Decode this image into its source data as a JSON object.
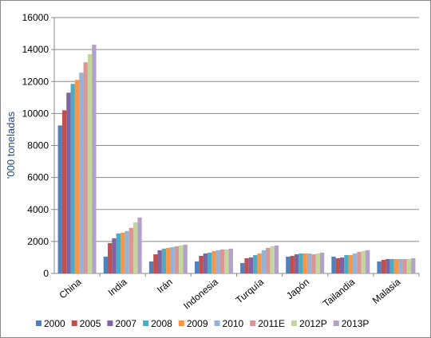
{
  "chart_data": {
    "type": "bar",
    "y_label": "'000 toneladas",
    "categories": [
      "China",
      "India",
      "Irán",
      "Indonesia",
      "Turquía",
      "Japón",
      "Tailandia",
      "Malasia"
    ],
    "series": [
      {
        "name": "2000",
        "color": "#4F81BD",
        "values": [
          9250,
          1050,
          750,
          750,
          650,
          1050,
          1050,
          750
        ]
      },
      {
        "name": "2005",
        "color": "#C0504D",
        "values": [
          10200,
          1900,
          1200,
          1100,
          950,
          1100,
          950,
          850
        ]
      },
      {
        "name": "2007",
        "color": "#8064A2",
        "values": [
          11300,
          2200,
          1450,
          1250,
          1000,
          1200,
          1000,
          900
        ]
      },
      {
        "name": "2008",
        "color": "#4BACC6",
        "values": [
          11850,
          2500,
          1550,
          1300,
          1150,
          1250,
          1150,
          900
        ]
      },
      {
        "name": "2009",
        "color": "#F79646",
        "values": [
          12100,
          2550,
          1600,
          1400,
          1250,
          1250,
          1150,
          900
        ]
      },
      {
        "name": "2010",
        "color": "#95B3D7",
        "values": [
          12550,
          2650,
          1650,
          1450,
          1450,
          1250,
          1250,
          900
        ]
      },
      {
        "name": "2011E",
        "color": "#D99694",
        "values": [
          13200,
          2850,
          1700,
          1500,
          1600,
          1200,
          1350,
          900
        ]
      },
      {
        "name": "2012P",
        "color": "#C3D69B",
        "values": [
          13700,
          3200,
          1750,
          1500,
          1700,
          1250,
          1400,
          900
        ]
      },
      {
        "name": "2013P",
        "color": "#B3A2C7",
        "values": [
          14300,
          3500,
          1800,
          1550,
          1750,
          1300,
          1450,
          950
        ]
      }
    ],
    "ylim": [
      0,
      16000
    ],
    "yticks": [
      0,
      2000,
      4000,
      6000,
      8000,
      10000,
      12000,
      14000,
      16000
    ],
    "grid": true,
    "legend": "bottom"
  }
}
